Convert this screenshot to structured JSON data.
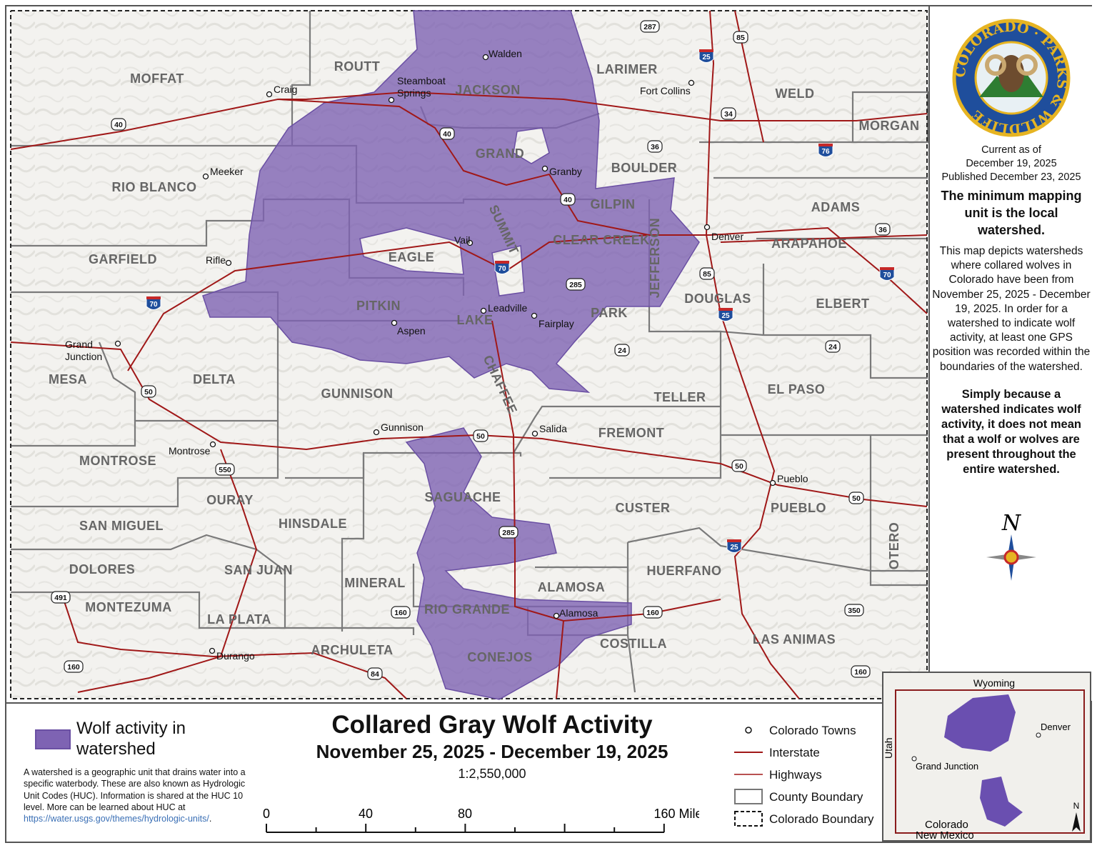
{
  "map": {
    "counties": [
      "MOFFAT",
      "ROUTT",
      "JACKSON",
      "LARIMER",
      "WELD",
      "MORGAN",
      "RIO BLANCO",
      "GRAND",
      "BOULDER",
      "GILPIN",
      "ADAMS",
      "GARFIELD",
      "EAGLE",
      "SUMMIT",
      "CLEAR CREEK",
      "JEFFERSON",
      "ARAPAHOE",
      "DOUGLAS",
      "ELBERT",
      "PITKIN",
      "LAKE",
      "PARK",
      "MESA",
      "DELTA",
      "GUNNISON",
      "CHAFFEE",
      "TELLER",
      "EL PASO",
      "FREMONT",
      "MONTROSE",
      "OURAY",
      "SAGUACHE",
      "CUSTER",
      "PUEBLO",
      "SAN MIGUEL",
      "HINSDALE",
      "DOLORES",
      "SAN JUAN",
      "MINERAL",
      "ALAMOSA",
      "HUERFANO",
      "OTERO",
      "MONTEZUMA",
      "LA PLATA",
      "RIO GRANDE",
      "COSTILLA",
      "ARCHULETA",
      "CONEJOS",
      "LAS ANIMAS"
    ],
    "towns": [
      "Walden",
      "Steamboat Springs",
      "Craig",
      "Fort Collins",
      "Meeker",
      "Granby",
      "Rifle",
      "Vail",
      "Denver",
      "Leadville",
      "Aspen",
      "Fairplay",
      "Grand Junction",
      "Gunnison",
      "Salida",
      "Montrose",
      "Pueblo",
      "Alamosa",
      "Durango"
    ],
    "shields": [
      "287",
      "85",
      "25",
      "40",
      "40",
      "34",
      "36",
      "76",
      "40",
      "36",
      "70",
      "85",
      "285",
      "70",
      "70",
      "25",
      "24",
      "24",
      "50",
      "50",
      "550",
      "50",
      "50",
      "285",
      "25",
      "491",
      "160",
      "160",
      "350",
      "160",
      "84",
      "160"
    ],
    "colors": {
      "wolf_activity": "#7e63b3",
      "interstate": "#a01818",
      "highway": "#a01818",
      "county_boundary": "#777777",
      "background": "#f1f0ec"
    }
  },
  "side": {
    "logo_text": "COLORADO PARKS & WILDLIFE",
    "current_as_of": "Current as of",
    "current_date": "December 19, 2025",
    "published": "Published December 23, 2025",
    "min_unit": "The minimum mapping unit is the local watershed.",
    "description": "This map depicts watersheds where collared wolves in Colorado have been from November 25, 2025 - December 19, 2025. In order for a watershed to indicate wolf activity, at least one GPS position was recorded within the boundaries of the watershed.",
    "disclaimer": "Simply because a watershed indicates wolf activity, it does not mean that a wolf or wolves are present throughout the entire watershed.",
    "north_label": "N"
  },
  "legend": {
    "wolf_label": "Wolf activity in watershed",
    "watershed_desc": "A watershed is a geographic unit that drains water into a specific waterbody. These are also known as Hydrologic Unit Codes (HUC). Information is shared at the HUC 10 level. More can be learned about HUC at ",
    "link": "https://water.usgs.gov/themes/hydrologic-units/",
    "title": "Collared Gray Wolf Activity",
    "subtitle": "November 25, 2025 - December 19, 2025",
    "scale": "1:2,550,000",
    "scale_labels": [
      "0",
      "40",
      "80",
      "160 Miles"
    ],
    "items": [
      "Colorado Towns",
      "Interstate",
      "Highways",
      "County Boundary",
      "Colorado Boundary"
    ]
  },
  "inset": {
    "labels": [
      "Wyoming",
      "Utah",
      "Denver",
      "Grand Junction",
      "Colorado",
      "New Mexico",
      "N"
    ]
  }
}
